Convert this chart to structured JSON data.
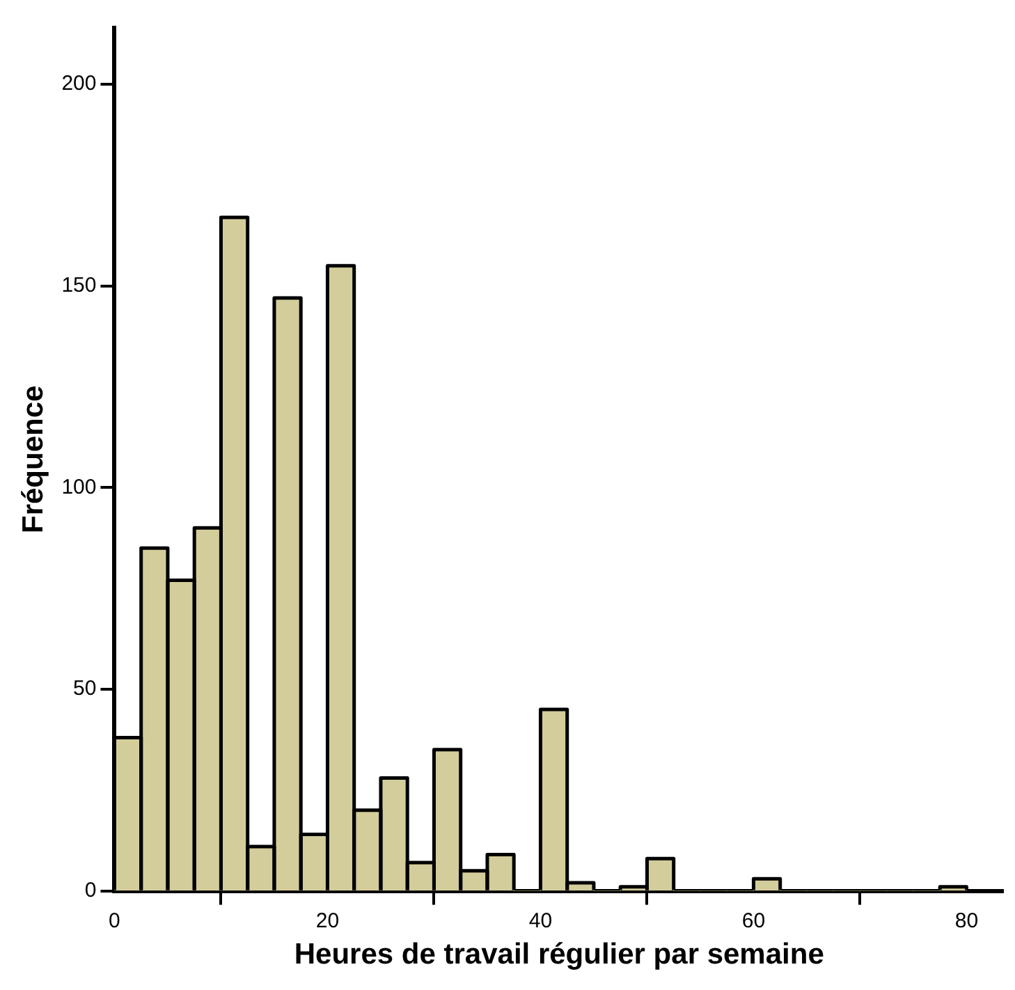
{
  "chart_data": {
    "type": "histogram",
    "xlabel": "Heures de travail régulier par semaine",
    "ylabel": "Fréquence",
    "bins": [
      0,
      2.5,
      5,
      7.5,
      10,
      12.5,
      15,
      17.5,
      20,
      22.5,
      25,
      27.5,
      30,
      32.5,
      35,
      37.5,
      40,
      42.5,
      45,
      47.5,
      50,
      52.5,
      55,
      57.5,
      60,
      62.5,
      65,
      67.5,
      70,
      72.5,
      75,
      77.5,
      80
    ],
    "values": [
      38,
      85,
      77,
      90,
      167,
      11,
      147,
      14,
      155,
      20,
      28,
      7,
      35,
      5,
      9,
      0,
      45,
      2,
      0,
      1,
      8,
      0,
      0,
      0,
      3,
      0,
      0,
      0,
      0,
      0,
      0,
      1
    ],
    "color": "#d3cd9b",
    "xlim": [
      0,
      83.5
    ],
    "xticks": [
      0,
      20,
      40,
      60,
      80
    ],
    "ylim": [
      0,
      214
    ],
    "yticks": [
      0,
      50,
      100,
      150,
      200
    ]
  }
}
